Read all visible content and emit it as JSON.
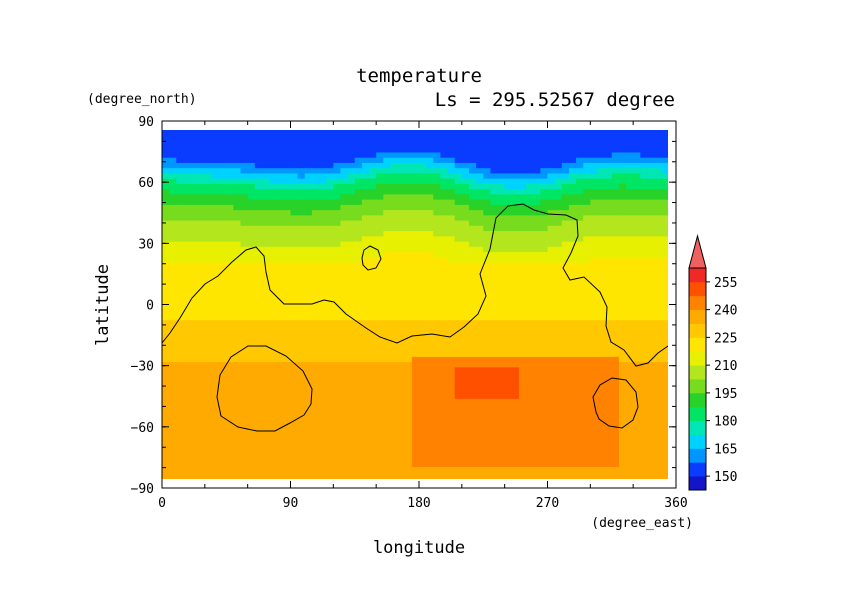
{
  "chart_data": {
    "type": "heatmap",
    "title": "temperature",
    "subtitle": "Ls = 295.52567 degree",
    "xlabel": "longitude",
    "ylabel": "latitude",
    "x_units": "(degree_east)",
    "y_units": "(degree_north)",
    "xlim": [
      0,
      360
    ],
    "ylim": [
      -90,
      90
    ],
    "x_ticks": [
      "0",
      "90",
      "180",
      "270",
      "360"
    ],
    "y_ticks": [
      "90",
      "60",
      "30",
      "0",
      "−30",
      "−60",
      "−90"
    ],
    "grid": false,
    "colorbar": {
      "levels": [
        150,
        165,
        180,
        195,
        210,
        225,
        240,
        255
      ],
      "tick_labels": [
        "255",
        "240",
        "225",
        "210",
        "195",
        "180",
        "165",
        "150"
      ],
      "colors": [
        "#1414c8",
        "#0a3cff",
        "#0096ff",
        "#00d2ff",
        "#00e6b4",
        "#00e664",
        "#28d228",
        "#78dc1e",
        "#b4e61e",
        "#e6f000",
        "#ffe600",
        "#ffc800",
        "#ffaa00",
        "#ff8200",
        "#ff5000",
        "#f02828",
        "#f06060"
      ]
    },
    "field_profile": {
      "latitude": [
        85,
        70,
        60,
        50,
        40,
        30,
        20,
        10,
        0,
        -10,
        -20,
        -30,
        -45,
        -60,
        -75,
        -85
      ],
      "temperature": [
        148,
        150,
        172,
        186,
        196,
        203,
        210,
        212,
        214,
        218,
        222,
        226,
        229,
        228,
        226,
        225
      ]
    },
    "warm_region": {
      "lon": [
        175,
        320
      ],
      "lat": [
        -80,
        -25
      ],
      "temperature": 236
    },
    "warmest_core": {
      "lon": [
        205,
        250
      ],
      "lat": [
        -30,
        -45
      ],
      "temperature": 242
    }
  }
}
